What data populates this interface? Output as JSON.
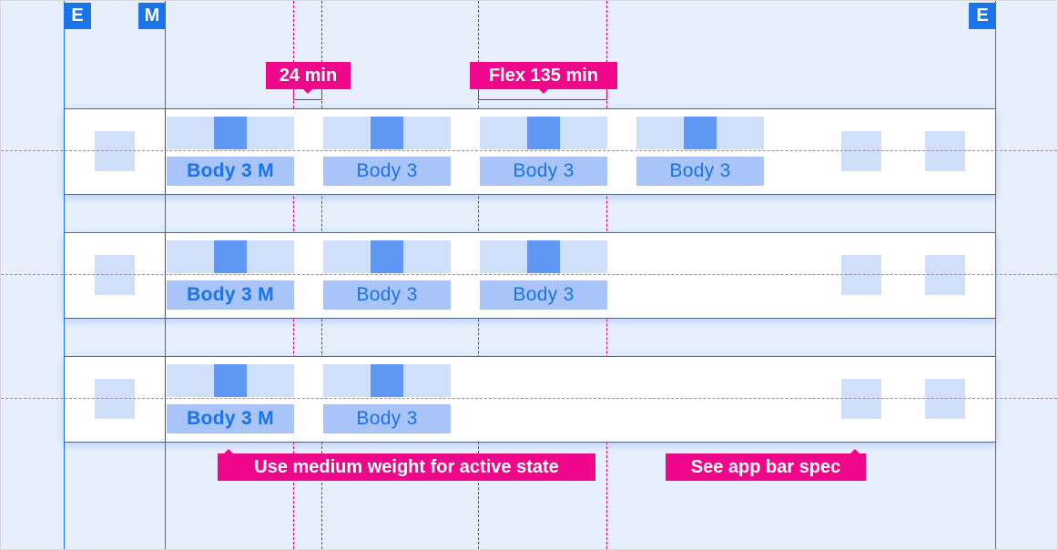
{
  "markers": {
    "edge_left": "E",
    "margin": "M",
    "edge_right": "E"
  },
  "annotations": {
    "min_gap": "24 min",
    "flex_width": "Flex 135 min",
    "active_state": "Use medium weight for active state",
    "app_bar": "See app bar spec"
  },
  "rows": [
    {
      "tabs": [
        "Body 3 M",
        "Body 3",
        "Body 3",
        "Body 3"
      ]
    },
    {
      "tabs": [
        "Body 3 M",
        "Body 3",
        "Body 3"
      ]
    },
    {
      "tabs": [
        "Body 3 M",
        "Body 3"
      ]
    }
  ],
  "colors": {
    "accent": "#1a73e8",
    "annotation": "#f0068b",
    "tab_fill": "#d0dffa",
    "icon": "#5f97f5",
    "label_fill": "#a8c4f8",
    "background": "#e8effc"
  }
}
